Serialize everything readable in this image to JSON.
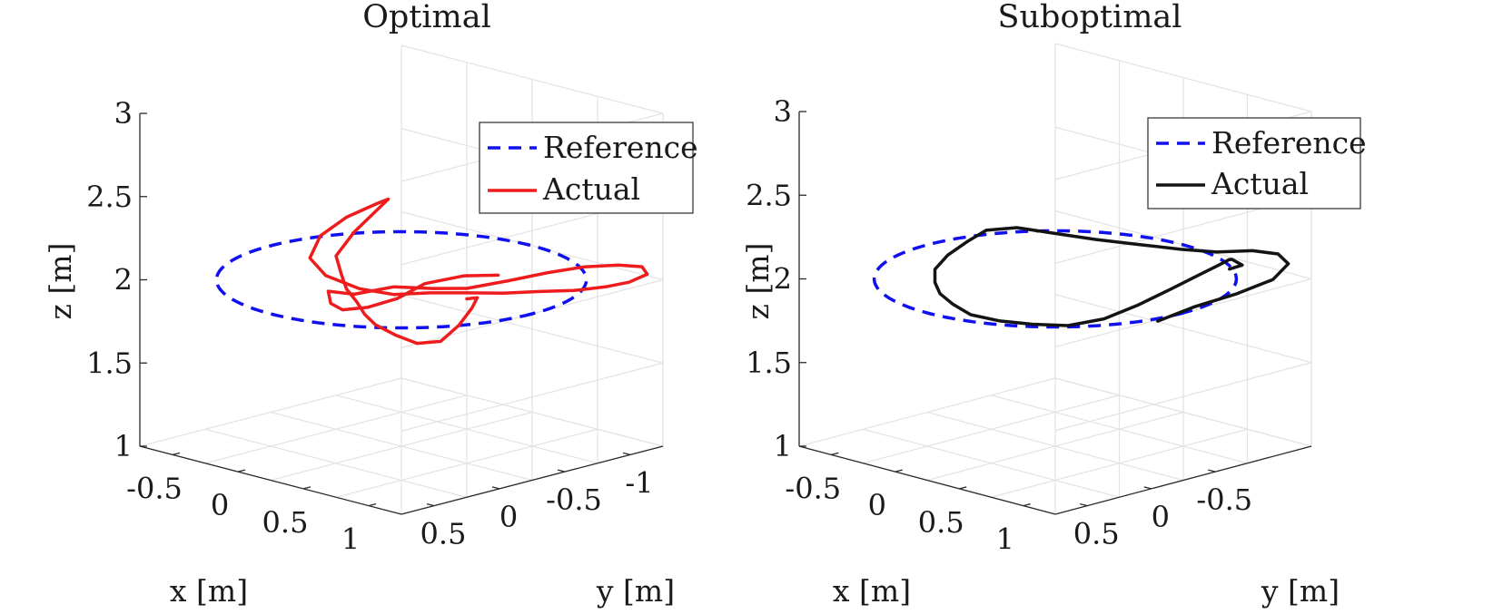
{
  "chart_data": [
    {
      "type": "line3d",
      "title": "Optimal",
      "xlabel": "x [m]",
      "ylabel": "y [m]",
      "zlabel": "z [m]",
      "xlim": [
        -0.75,
        1.25
      ],
      "ylim": [
        -1.25,
        0.75
      ],
      "zlim": [
        1,
        3
      ],
      "xticks": [
        "-0.5",
        "0",
        "0.5",
        "1"
      ],
      "yticks": [
        "-1",
        "-0.5",
        "0",
        "0.5"
      ],
      "zticks": [
        "1",
        "1.5",
        "2",
        "2.5",
        "3"
      ],
      "grid": true,
      "legend_position": "top-right",
      "series": [
        {
          "name": "Reference",
          "style": "dashed",
          "color": "#1010f0",
          "shape": "circle",
          "center": [
            0.25,
            -0.25,
            2.0
          ],
          "radius": 1.0
        },
        {
          "name": "Actual",
          "style": "solid",
          "color": "#ee1c1c",
          "points": [
            [
              0.16,
              -1.08,
              1.84
            ],
            [
              0.04,
              -0.94,
              1.84
            ],
            [
              -0.02,
              -0.7,
              1.83
            ],
            [
              0.02,
              -0.45,
              1.8
            ],
            [
              0.06,
              -0.18,
              1.81
            ],
            [
              0.1,
              0.05,
              1.85
            ],
            [
              0.18,
              0.22,
              1.94
            ],
            [
              0.26,
              0.32,
              2.05
            ],
            [
              0.38,
              0.24,
              2.04
            ],
            [
              0.52,
              0.08,
              2.08
            ],
            [
              0.62,
              -0.12,
              2.05
            ],
            [
              0.7,
              -0.3,
              2.03
            ],
            [
              0.82,
              -0.5,
              2.06
            ],
            [
              0.9,
              -0.72,
              2.08
            ],
            [
              0.98,
              -0.92,
              2.09
            ],
            [
              1.06,
              -1.1,
              2.08
            ],
            [
              1.1,
              -1.24,
              2.05
            ],
            [
              1.06,
              -1.32,
              1.98
            ],
            [
              0.96,
              -1.28,
              1.92
            ],
            [
              0.84,
              -1.22,
              1.88
            ],
            [
              0.7,
              -1.12,
              1.85
            ],
            [
              0.56,
              -1.0,
              1.84
            ],
            [
              0.42,
              -0.86,
              1.83
            ],
            [
              0.3,
              -0.7,
              1.84
            ],
            [
              0.16,
              -0.56,
              1.84
            ],
            [
              0.02,
              -0.42,
              1.83
            ],
            [
              -0.12,
              -0.3,
              1.86
            ],
            [
              -0.3,
              -0.22,
              1.92
            ],
            [
              -0.42,
              -0.22,
              2.0
            ],
            [
              -0.46,
              -0.34,
              2.1
            ],
            [
              -0.44,
              -0.52,
              2.18
            ],
            [
              -0.38,
              -0.7,
              2.24
            ],
            [
              -0.4,
              -0.8,
              2.24
            ],
            [
              -0.44,
              -0.58,
              2.08
            ],
            [
              -0.4,
              -0.4,
              1.98
            ],
            [
              -0.26,
              -0.3,
              1.92
            ],
            [
              -0.12,
              -0.2,
              1.88
            ],
            [
              0.04,
              -0.12,
              1.85
            ],
            [
              0.18,
              -0.04,
              1.82
            ],
            [
              0.32,
              0.02,
              1.8
            ],
            [
              0.46,
              0.0,
              1.76
            ],
            [
              0.56,
              -0.06,
              1.72
            ],
            [
              0.62,
              -0.18,
              1.72
            ],
            [
              0.6,
              -0.34,
              1.78
            ],
            [
              0.54,
              -0.5,
              1.84
            ],
            [
              0.46,
              -0.62,
              1.86
            ],
            [
              0.34,
              -0.66,
              1.82
            ]
          ]
        }
      ]
    },
    {
      "type": "line3d",
      "title": "Suboptimal",
      "xlabel": "x [m]",
      "ylabel": "y [m]",
      "zlabel": "z [m]",
      "xlim": [
        -0.75,
        1.25
      ],
      "ylim": [
        -1.25,
        0.75
      ],
      "zlim": [
        1,
        3
      ],
      "xticks": [
        "-0.5",
        "0",
        "0.5",
        "1"
      ],
      "yticks": [
        "-0.5",
        "0",
        "0.5"
      ],
      "zticks": [
        "1",
        "1.5",
        "2",
        "2.5",
        "3"
      ],
      "grid": true,
      "legend_position": "top-right",
      "series": [
        {
          "name": "Reference",
          "style": "dashed",
          "color": "#1010f0",
          "shape": "circle",
          "center": [
            0.25,
            -0.25,
            2.0
          ],
          "radius": 1.0
        },
        {
          "name": "Actual",
          "style": "solid",
          "color": "#141414",
          "points": [
            [
              0.78,
              -0.52,
              1.8
            ],
            [
              0.86,
              -0.72,
              1.86
            ],
            [
              0.98,
              -0.94,
              1.92
            ],
            [
              1.06,
              -1.14,
              1.98
            ],
            [
              1.06,
              -1.26,
              2.05
            ],
            [
              1.0,
              -1.24,
              2.1
            ],
            [
              0.9,
              -1.14,
              2.12
            ],
            [
              0.78,
              -0.98,
              2.12
            ],
            [
              0.6,
              -0.88,
              2.12
            ],
            [
              0.42,
              -0.74,
              2.14
            ],
            [
              0.2,
              -0.62,
              2.15
            ],
            [
              -0.04,
              -0.52,
              2.16
            ],
            [
              -0.26,
              -0.46,
              2.16
            ],
            [
              -0.44,
              -0.4,
              2.12
            ],
            [
              -0.5,
              -0.32,
              2.06
            ],
            [
              -0.52,
              -0.18,
              2.0
            ],
            [
              -0.46,
              -0.02,
              1.96
            ],
            [
              -0.34,
              0.1,
              1.93
            ],
            [
              -0.18,
              0.22,
              1.92
            ],
            [
              0.0,
              0.3,
              1.91
            ],
            [
              0.2,
              0.36,
              1.9
            ],
            [
              0.4,
              0.34,
              1.9
            ],
            [
              0.58,
              0.26,
              1.9
            ],
            [
              0.74,
              0.14,
              1.9
            ],
            [
              0.88,
              0.0,
              1.94
            ],
            [
              0.96,
              -0.18,
              2.0
            ],
            [
              1.0,
              -0.4,
              2.06
            ],
            [
              1.0,
              -0.62,
              2.1
            ],
            [
              0.98,
              -0.8,
              2.12
            ],
            [
              0.94,
              -0.92,
              2.12
            ],
            [
              0.9,
              -0.98,
              2.1
            ],
            [
              0.9,
              -1.06,
              2.05
            ],
            [
              0.86,
              -1.0,
              2.03
            ]
          ]
        }
      ]
    }
  ]
}
